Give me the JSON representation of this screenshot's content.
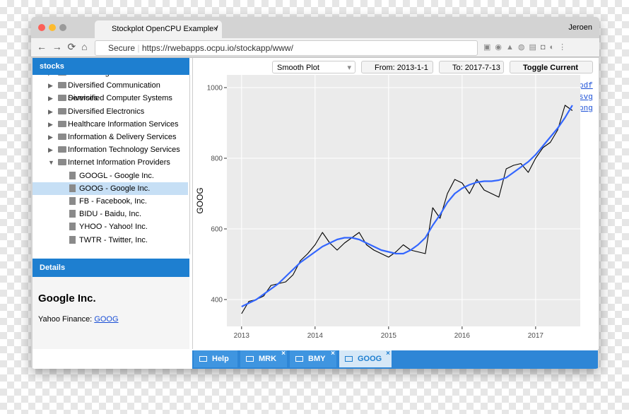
{
  "browser": {
    "tab_title": "Stockplot OpenCPU Example /",
    "user": "Jeroen",
    "security": "Secure",
    "url": "https://rwebapps.ocpu.io/stockapp/www/"
  },
  "sidebar": {
    "title": "stocks",
    "folders": [
      "Data Storage Devices",
      "Diversified Communication Services",
      "Diversified Computer Systems",
      "Diversified Electronics",
      "Healthcare Information Services",
      "Information & Delivery Services",
      "Information Technology Services",
      "Internet Information Providers"
    ],
    "files": [
      "GOOGL - Google Inc.",
      "GOOG - Google Inc.",
      "FB - Facebook, Inc.",
      "BIDU - Baidu, Inc.",
      "YHOO - Yahoo! Inc.",
      "TWTR - Twitter, Inc."
    ]
  },
  "details": {
    "title": "Details",
    "heading": "Google Inc.",
    "source_label": "Yahoo Finance:",
    "source_link": "GOOG"
  },
  "toolbar": {
    "plot_type": "Smooth Plot",
    "from": "From: 2013-1-1",
    "to": "To: 2017-7-13",
    "toggle": "Toggle Current Value"
  },
  "downloads": [
    "pdf",
    "svg",
    "png"
  ],
  "tabs": [
    "Help",
    "MRK",
    "BMY",
    "GOOG"
  ],
  "chart_data": {
    "type": "line",
    "ylabel": "GOOG",
    "x": [
      2013.0,
      2013.1,
      2013.2,
      2013.3,
      2013.4,
      2013.5,
      2013.6,
      2013.7,
      2013.8,
      2013.9,
      2014.0,
      2014.1,
      2014.2,
      2014.3,
      2014.4,
      2014.5,
      2014.6,
      2014.7,
      2014.8,
      2014.9,
      2015.0,
      2015.1,
      2015.2,
      2015.3,
      2015.4,
      2015.5,
      2015.6,
      2015.7,
      2015.8,
      2015.9,
      2016.0,
      2016.1,
      2016.2,
      2016.3,
      2016.4,
      2016.5,
      2016.6,
      2016.7,
      2016.8,
      2016.9,
      2017.0,
      2017.1,
      2017.2,
      2017.3,
      2017.4,
      2017.5
    ],
    "series": [
      {
        "color": "#000000",
        "values": [
          360,
          395,
          400,
          410,
          440,
          445,
          450,
          470,
          510,
          530,
          555,
          590,
          560,
          540,
          560,
          575,
          590,
          555,
          540,
          530,
          520,
          535,
          555,
          540,
          535,
          530,
          660,
          630,
          700,
          740,
          730,
          700,
          740,
          710,
          700,
          690,
          770,
          780,
          785,
          760,
          800,
          830,
          845,
          880,
          950,
          935
        ]
      },
      {
        "color": "#3366ff",
        "values": [
          380,
          390,
          400,
          415,
          430,
          445,
          465,
          485,
          505,
          520,
          535,
          550,
          560,
          570,
          575,
          575,
          570,
          560,
          550,
          540,
          535,
          530,
          530,
          540,
          555,
          575,
          610,
          640,
          675,
          700,
          715,
          725,
          732,
          735,
          735,
          738,
          745,
          760,
          775,
          790,
          810,
          835,
          860,
          885,
          915,
          950
        ]
      }
    ],
    "xlim": [
      2012.8,
      2017.78
    ],
    "ylim": [
      324,
      1036
    ],
    "xticks": [
      2013,
      2014,
      2015,
      2016,
      2017
    ],
    "yticks": [
      400,
      600,
      800,
      1000
    ],
    "grid": true
  }
}
